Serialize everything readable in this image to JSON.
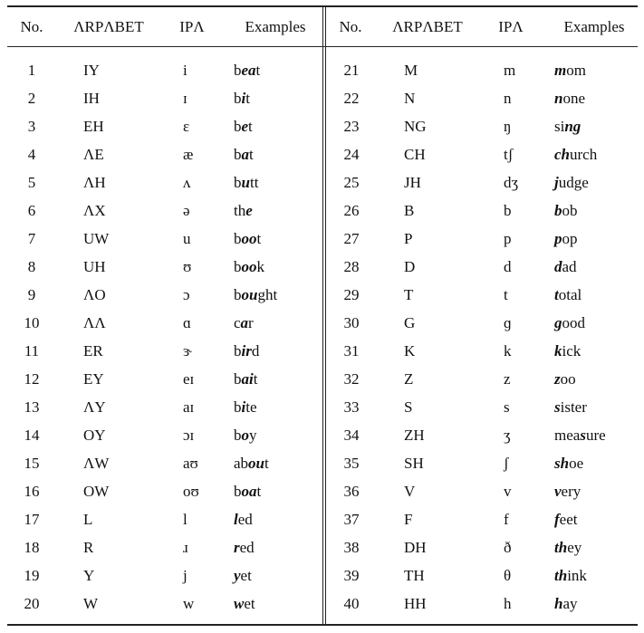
{
  "table": {
    "header": [
      "No.",
      "ΛRPΛBET",
      "IPΛ",
      "Examples"
    ],
    "rows": [
      {
        "no": 1,
        "arpa": "IY",
        "ipa": "i",
        "ex": {
          "pre": "b",
          "bold": "ea",
          "post": "t"
        }
      },
      {
        "no": 2,
        "arpa": "IH",
        "ipa": "ɪ",
        "ex": {
          "pre": "b",
          "bold": "i",
          "post": "t"
        }
      },
      {
        "no": 3,
        "arpa": "EH",
        "ipa": "ɛ",
        "ex": {
          "pre": "b",
          "bold": "e",
          "post": "t"
        }
      },
      {
        "no": 4,
        "arpa": "ΛE",
        "ipa": "æ",
        "ex": {
          "pre": "b",
          "bold": "a",
          "post": "t"
        }
      },
      {
        "no": 5,
        "arpa": "ΛH",
        "ipa": "ʌ",
        "ex": {
          "pre": "b",
          "bold": "u",
          "post": "tt"
        }
      },
      {
        "no": 6,
        "arpa": "ΛX",
        "ipa": "ə",
        "ex": {
          "pre": "th",
          "bold": "e"
        }
      },
      {
        "no": 7,
        "arpa": "UW",
        "ipa": "u",
        "ex": {
          "pre": "b",
          "bold": "oo",
          "post": "t"
        }
      },
      {
        "no": 8,
        "arpa": "UH",
        "ipa": "ʊ",
        "ex": {
          "pre": "b",
          "bold": "oo",
          "post": "k"
        }
      },
      {
        "no": 9,
        "arpa": "ΛO",
        "ipa": "ɔ",
        "ex": {
          "pre": "b",
          "bold": "ou",
          "post": "ght"
        }
      },
      {
        "no": 10,
        "arpa": "ΛΛ",
        "ipa": "ɑ",
        "ex": {
          "pre": "c",
          "bold": "a",
          "post": "r"
        }
      },
      {
        "no": 11,
        "arpa": "ER",
        "ipa": "ɝ",
        "ex": {
          "pre": "b",
          "bold": "ir",
          "post": "d"
        }
      },
      {
        "no": 12,
        "arpa": "EY",
        "ipa": "eɪ",
        "ex": {
          "pre": "b",
          "bold": "ai",
          "post": "t"
        }
      },
      {
        "no": 13,
        "arpa": "ΛY",
        "ipa": "aɪ",
        "ex": {
          "pre": "b",
          "bold": "i",
          "post": "te"
        }
      },
      {
        "no": 14,
        "arpa": "OY",
        "ipa": "ɔɪ",
        "ex": {
          "pre": "b",
          "bold": "o",
          "post": "y"
        }
      },
      {
        "no": 15,
        "arpa": "ΛW",
        "ipa": "aʊ",
        "ex": {
          "pre": "ab",
          "bold": "ou",
          "post": "t"
        }
      },
      {
        "no": 16,
        "arpa": "OW",
        "ipa": "oʊ",
        "ex": {
          "pre": "b",
          "bold": "oa",
          "post": "t"
        }
      },
      {
        "no": 17,
        "arpa": "L",
        "ipa": "l",
        "ex": {
          "bold": "l",
          "post": "ed"
        }
      },
      {
        "no": 18,
        "arpa": "R",
        "ipa": "ɹ",
        "ex": {
          "bold": "r",
          "post": "ed"
        }
      },
      {
        "no": 19,
        "arpa": "Y",
        "ipa": "j",
        "ex": {
          "bold": "y",
          "post": "et"
        }
      },
      {
        "no": 20,
        "arpa": "W",
        "ipa": "w",
        "ex": {
          "bold": "w",
          "post": "et"
        }
      },
      {
        "no": 21,
        "arpa": "M",
        "ipa": "m",
        "ex": {
          "bold": "m",
          "post": "om"
        }
      },
      {
        "no": 22,
        "arpa": "N",
        "ipa": "n",
        "ex": {
          "bold": "n",
          "post": "one"
        }
      },
      {
        "no": 23,
        "arpa": "NG",
        "ipa": "ŋ",
        "ex": {
          "pre": "si",
          "bold": "ng"
        }
      },
      {
        "no": 24,
        "arpa": "CH",
        "ipa": "tʃ",
        "ex": {
          "bold": "ch",
          "post": "urch"
        }
      },
      {
        "no": 25,
        "arpa": "JH",
        "ipa": "dʒ",
        "ex": {
          "bold": "j",
          "post": "udge"
        }
      },
      {
        "no": 26,
        "arpa": "B",
        "ipa": "b",
        "ex": {
          "bold": "b",
          "post": "ob"
        }
      },
      {
        "no": 27,
        "arpa": "P",
        "ipa": "p",
        "ex": {
          "bold": "p",
          "post": "op"
        }
      },
      {
        "no": 28,
        "arpa": "D",
        "ipa": "d",
        "ex": {
          "bold": "d",
          "post": "ad"
        }
      },
      {
        "no": 29,
        "arpa": "T",
        "ipa": "t",
        "ex": {
          "bold": "t",
          "post": "otal"
        }
      },
      {
        "no": 30,
        "arpa": "G",
        "ipa": "ɡ",
        "ex": {
          "bold": "g",
          "post": "ood"
        }
      },
      {
        "no": 31,
        "arpa": "K",
        "ipa": "k",
        "ex": {
          "bold": "k",
          "post": "ick"
        }
      },
      {
        "no": 32,
        "arpa": "Z",
        "ipa": "z",
        "ex": {
          "bold": "z",
          "post": "oo"
        }
      },
      {
        "no": 33,
        "arpa": "S",
        "ipa": "s",
        "ex": {
          "bold": "s",
          "post": "ister"
        }
      },
      {
        "no": 34,
        "arpa": "ZH",
        "ipa": "ʒ",
        "ex": {
          "pre": "mea",
          "bold": "s",
          "post": "ure"
        }
      },
      {
        "no": 35,
        "arpa": "SH",
        "ipa": "ʃ",
        "ex": {
          "bold": "sh",
          "post": "oe"
        }
      },
      {
        "no": 36,
        "arpa": "V",
        "ipa": "v",
        "ex": {
          "bold": "v",
          "post": "ery"
        }
      },
      {
        "no": 37,
        "arpa": "F",
        "ipa": "f",
        "ex": {
          "bold": "f",
          "post": "eet"
        }
      },
      {
        "no": 38,
        "arpa": "DH",
        "ipa": "ð",
        "ex": {
          "bold": "th",
          "post": "ey"
        }
      },
      {
        "no": 39,
        "arpa": "TH",
        "ipa": "θ",
        "ex": {
          "bold": "th",
          "post": "ink"
        }
      },
      {
        "no": 40,
        "arpa": "HH",
        "ipa": "h",
        "ex": {
          "bold": "h",
          "post": "ay"
        }
      }
    ]
  }
}
